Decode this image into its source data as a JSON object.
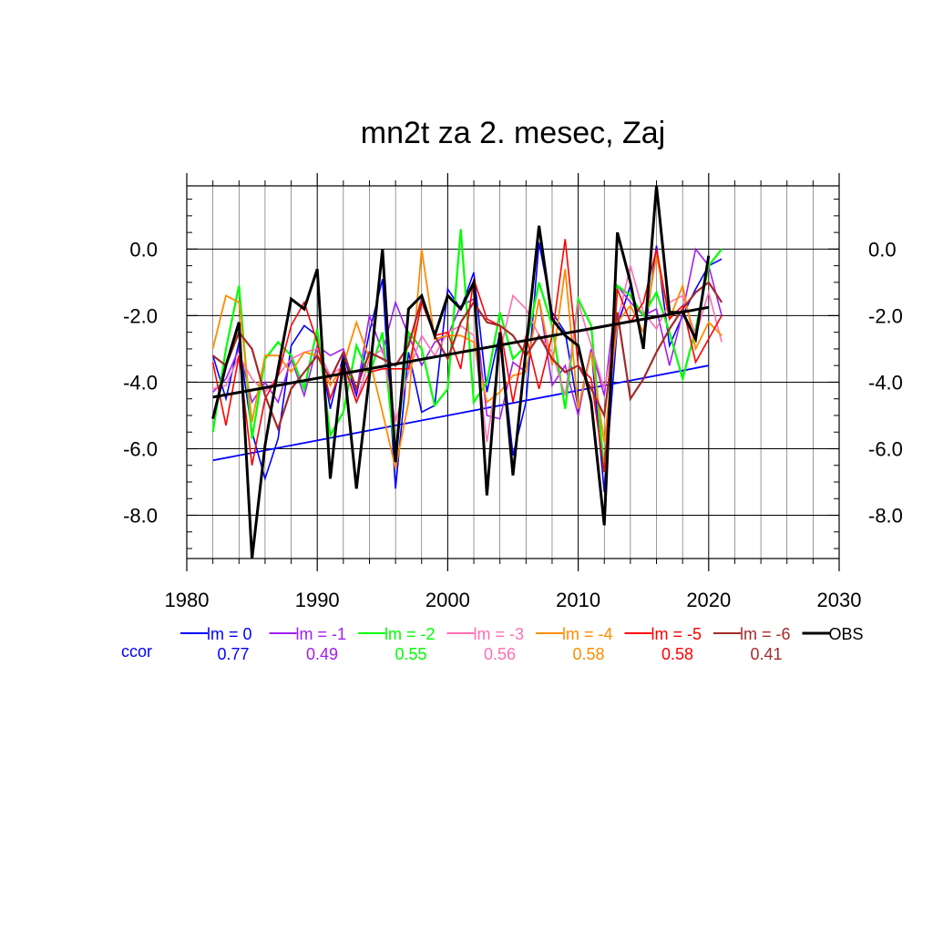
{
  "chart_data": {
    "type": "line",
    "title": "mn2t za 2. mesec, Zaj",
    "xlabel": "",
    "ylabel": "",
    "xlim": [
      1980,
      2030
    ],
    "ylim": [
      -9.3,
      1.9
    ],
    "x_ticks": [
      1980,
      1990,
      2000,
      2010,
      2020,
      2030
    ],
    "x_tick_labels": [
      "1980",
      "1990",
      "2000",
      "2010",
      "2020",
      "2030"
    ],
    "y_ticks": [
      0,
      -2,
      -4,
      -6,
      -8
    ],
    "y_tick_labels": [
      "0.0",
      "-2.0",
      "-4.0",
      "-6.0",
      "-8.0"
    ],
    "grid": true,
    "legend_position": "bottom",
    "ccor_label": "ccor",
    "x": [
      1982,
      1983,
      1984,
      1985,
      1986,
      1987,
      1988,
      1989,
      1990,
      1991,
      1992,
      1993,
      1994,
      1995,
      1996,
      1997,
      1998,
      1999,
      2000,
      2001,
      2002,
      2003,
      2004,
      2005,
      2006,
      2007,
      2008,
      2009,
      2010,
      2011,
      2012,
      2013,
      2014,
      2015,
      2016,
      2017,
      2018,
      2019,
      2020,
      2021
    ],
    "series": [
      {
        "name": "lm = 0",
        "color": "#0000ff",
        "width": 1.6,
        "ccor": "0.77",
        "values": [
          -3.2,
          -4.5,
          -2.8,
          -5.5,
          -6.9,
          -5.7,
          -2.9,
          -2.3,
          -2.6,
          -4.8,
          -3.2,
          -4.4,
          -2.5,
          -0.9,
          -7.2,
          -3.1,
          -4.9,
          -4.7,
          -1.2,
          -1.8,
          -0.7,
          -4.3,
          -2.5,
          -6.2,
          -4.6,
          0.2,
          -1.9,
          -2.5,
          -4.8,
          -3.0,
          -7.3,
          -2.3,
          -1.1,
          -2.9,
          0.1,
          -2.9,
          -2.0,
          -1.2,
          -0.5,
          -0.3
        ],
        "trend": [
          -6.35,
          -3.5
        ]
      },
      {
        "name": "lm = -1",
        "color": "#a020f0",
        "width": 1.6,
        "ccor": "0.49",
        "values": [
          -4.3,
          -3.9,
          -3.0,
          -4.6,
          -4.0,
          -4.6,
          -3.3,
          -4.4,
          -2.9,
          -3.2,
          -3.0,
          -4.3,
          -2.0,
          -3.1,
          -1.6,
          -2.6,
          -3.5,
          -2.8,
          -2.6,
          -1.7,
          -1.5,
          -5.0,
          -5.1,
          -3.4,
          -3.7,
          -1.5,
          -4.1,
          -3.5,
          -5.0,
          -3.0,
          -4.4,
          -1.1,
          -1.6,
          -2.0,
          -1.8,
          -3.5,
          -1.9,
          0.0,
          -0.5,
          -2.0
        ]
      },
      {
        "name": "lm = -2",
        "color": "#00ff00",
        "width": 2.2,
        "ccor": "0.55",
        "values": [
          -5.5,
          -3.0,
          -1.1,
          -5.7,
          -3.3,
          -2.8,
          -3.2,
          -4.2,
          -2.4,
          -5.6,
          -4.9,
          -2.9,
          -3.8,
          -2.5,
          -6.3,
          -2.5,
          -3.0,
          -4.7,
          -4.2,
          0.6,
          -4.6,
          -4.0,
          -1.9,
          -3.3,
          -2.9,
          -1.0,
          -2.3,
          -4.8,
          -1.5,
          -2.3,
          -6.7,
          -1.1,
          -1.4,
          -2.0,
          -1.3,
          -2.5,
          -3.9,
          -2.4,
          -0.5,
          0.0
        ]
      },
      {
        "name": "lm = -3",
        "color": "#ff6eb4",
        "width": 1.6,
        "ccor": "0.56",
        "values": [
          -4.2,
          -4.1,
          -3.2,
          -3.9,
          -4.3,
          -3.8,
          -3.3,
          -3.1,
          -3.0,
          -3.8,
          -3.5,
          -4.6,
          -3.3,
          -3.0,
          -5.2,
          -3.7,
          -2.6,
          -3.2,
          -2.5,
          -2.3,
          -2.6,
          -5.8,
          -3.1,
          -1.4,
          -1.8,
          -2.6,
          -3.1,
          -4.4,
          -1.6,
          -2.9,
          -4.2,
          -2.2,
          -0.5,
          -1.9,
          -2.4,
          -1.6,
          -1.4,
          -2.6,
          -1.3,
          -2.8
        ]
      },
      {
        "name": "lm = -4",
        "color": "#ff8c00",
        "width": 1.8,
        "ccor": "0.58",
        "values": [
          -3.0,
          -1.4,
          -1.6,
          -5.2,
          -3.2,
          -3.2,
          -3.7,
          -3.1,
          -3.2,
          -4.1,
          -3.5,
          -2.2,
          -3.3,
          -4.9,
          -6.6,
          -4.6,
          0.0,
          -2.7,
          -2.6,
          -2.6,
          -2.8,
          -4.6,
          -4.3,
          -3.8,
          -3.7,
          -1.5,
          -3.5,
          -0.6,
          -4.8,
          -3.1,
          -5.8,
          -2.2,
          -1.7,
          -2.5,
          -0.2,
          -2.1,
          -1.1,
          -3.0,
          -2.2,
          -2.6
        ]
      },
      {
        "name": "lm = -5",
        "color": "#ff0000",
        "width": 1.6,
        "ccor": "0.58",
        "values": [
          -3.4,
          -5.3,
          -3.2,
          -6.5,
          -4.5,
          -3.8,
          -2.3,
          -1.6,
          -2.8,
          -4.5,
          -3.4,
          -4.6,
          -3.7,
          -3.6,
          -3.6,
          -3.6,
          -1.6,
          -2.6,
          -2.5,
          -3.6,
          -0.9,
          -2.1,
          -2.3,
          -4.6,
          -2.6,
          -4.2,
          -2.6,
          0.3,
          -3.5,
          -3.9,
          -6.7,
          -1.2,
          -2.2,
          -1.6,
          0.0,
          -2.1,
          -1.7,
          -3.4,
          -2.7,
          -2.0
        ]
      },
      {
        "name": "lm = -6",
        "color": "#a52a2a",
        "width": 2.2,
        "ccor": "0.41",
        "values": [
          -3.2,
          -3.5,
          -2.5,
          -3.0,
          -4.4,
          -5.4,
          -4.2,
          -3.7,
          -3.2,
          -3.9,
          -3.1,
          -4.2,
          -3.1,
          -3.3,
          -3.5,
          -2.9,
          -1.5,
          -2.6,
          -3.3,
          -2.2,
          -1.6,
          -2.2,
          -2.3,
          -2.6,
          -3.2,
          -2.6,
          -3.3,
          -3.7,
          -3.5,
          -4.2,
          -5.0,
          -1.9,
          -4.5,
          -3.9,
          -3.1,
          -2.4,
          -1.8,
          -1.3,
          -1.0,
          -1.6
        ]
      },
      {
        "name": "OBS",
        "color": "#000000",
        "width": 3.0,
        "ccor": "",
        "values": [
          -5.1,
          -3.5,
          -2.2,
          -9.3,
          -5.9,
          -3.6,
          -1.5,
          -1.8,
          -0.6,
          -6.9,
          -3.3,
          -7.2,
          -3.8,
          0.0,
          -6.4,
          -1.8,
          -1.4,
          -2.6,
          -1.4,
          -1.8,
          -1.0,
          -7.4,
          -2.5,
          -6.8,
          -3.0,
          0.7,
          -2.1,
          -2.6,
          -2.9,
          -4.6,
          -8.3,
          0.5,
          -1.0,
          -3.0,
          1.9,
          -1.9,
          -1.9,
          -2.7,
          -0.2,
          null
        ],
        "trend": [
          -4.45,
          -1.75
        ]
      }
    ]
  }
}
